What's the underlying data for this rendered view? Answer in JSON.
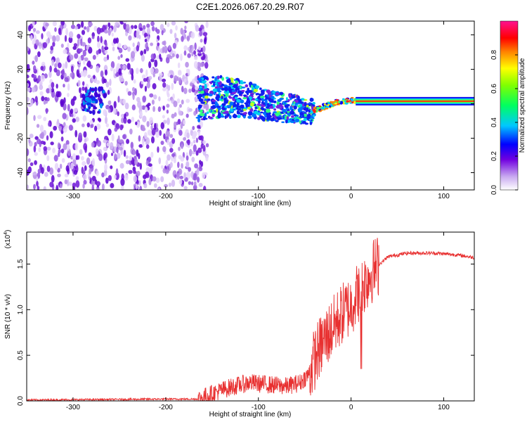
{
  "title": "C2E1.2026.067.20.29.R07",
  "chart_data": [
    {
      "type": "heatmap",
      "name": "spectrogram",
      "xlabel": "Height of straight line (km)",
      "ylabel": "Frequency (Hz)",
      "xlim": [
        -350,
        133
      ],
      "ylim": [
        -50,
        48
      ],
      "xticks": [
        -300,
        -200,
        -100,
        0,
        100
      ],
      "yticks": [
        -40,
        -20,
        0,
        20,
        40
      ],
      "noise_region_x": [
        -350,
        -165
      ],
      "signal_track": [
        {
          "x": -285,
          "y": 2
        },
        {
          "x": -270,
          "y": 3
        },
        {
          "x": -160,
          "y": 3
        },
        {
          "x": -140,
          "y": 4
        },
        {
          "x": -120,
          "y": 3
        },
        {
          "x": -100,
          "y": 1
        },
        {
          "x": -80,
          "y": -2
        },
        {
          "x": -60,
          "y": -3
        },
        {
          "x": -45,
          "y": -5
        },
        {
          "x": -30,
          "y": -2
        },
        {
          "x": -15,
          "y": 1
        },
        {
          "x": 0,
          "y": 2
        },
        {
          "x": 20,
          "y": 1.5
        },
        {
          "x": 60,
          "y": 1.5
        },
        {
          "x": 100,
          "y": 1.5
        },
        {
          "x": 133,
          "y": 1.5
        }
      ],
      "colorbar": {
        "label": "Normalized spectral amplitude",
        "range": [
          0,
          1
        ],
        "ticks": [
          "0.0",
          "0.2",
          "0.4",
          "0.6",
          "0.8"
        ]
      }
    },
    {
      "type": "line",
      "name": "snr",
      "xlabel": "Height of straight line (km)",
      "ylabel": "SNR (10 * v/v)",
      "scale_label": "(x10",
      "scale_exp": "4",
      "scale_close": ")",
      "xlim": [
        -350,
        133
      ],
      "ylim": [
        0,
        1.85
      ],
      "xticks": [
        -300,
        -200,
        -100,
        0,
        100
      ],
      "yticks": [
        "0.0",
        "0.5",
        "1.0",
        "1.5"
      ],
      "color": "#e83030",
      "series": [
        {
          "x": -350,
          "y": 0.01
        },
        {
          "x": -200,
          "y": 0.02
        },
        {
          "x": -165,
          "y": 0.02
        },
        {
          "x": -150,
          "y": 0.08
        },
        {
          "x": -130,
          "y": 0.15
        },
        {
          "x": -110,
          "y": 0.2
        },
        {
          "x": -90,
          "y": 0.18
        },
        {
          "x": -70,
          "y": 0.16
        },
        {
          "x": -55,
          "y": 0.2
        },
        {
          "x": -45,
          "y": 0.3
        },
        {
          "x": -38,
          "y": 0.5
        },
        {
          "x": -30,
          "y": 0.65
        },
        {
          "x": -20,
          "y": 0.8
        },
        {
          "x": -10,
          "y": 0.95
        },
        {
          "x": 0,
          "y": 1.05
        },
        {
          "x": 8,
          "y": 1.2
        },
        {
          "x": 15,
          "y": 1.3
        },
        {
          "x": 25,
          "y": 1.45
        },
        {
          "x": 40,
          "y": 1.58
        },
        {
          "x": 60,
          "y": 1.62
        },
        {
          "x": 90,
          "y": 1.62
        },
        {
          "x": 115,
          "y": 1.6
        },
        {
          "x": 133,
          "y": 1.57
        }
      ]
    }
  ]
}
